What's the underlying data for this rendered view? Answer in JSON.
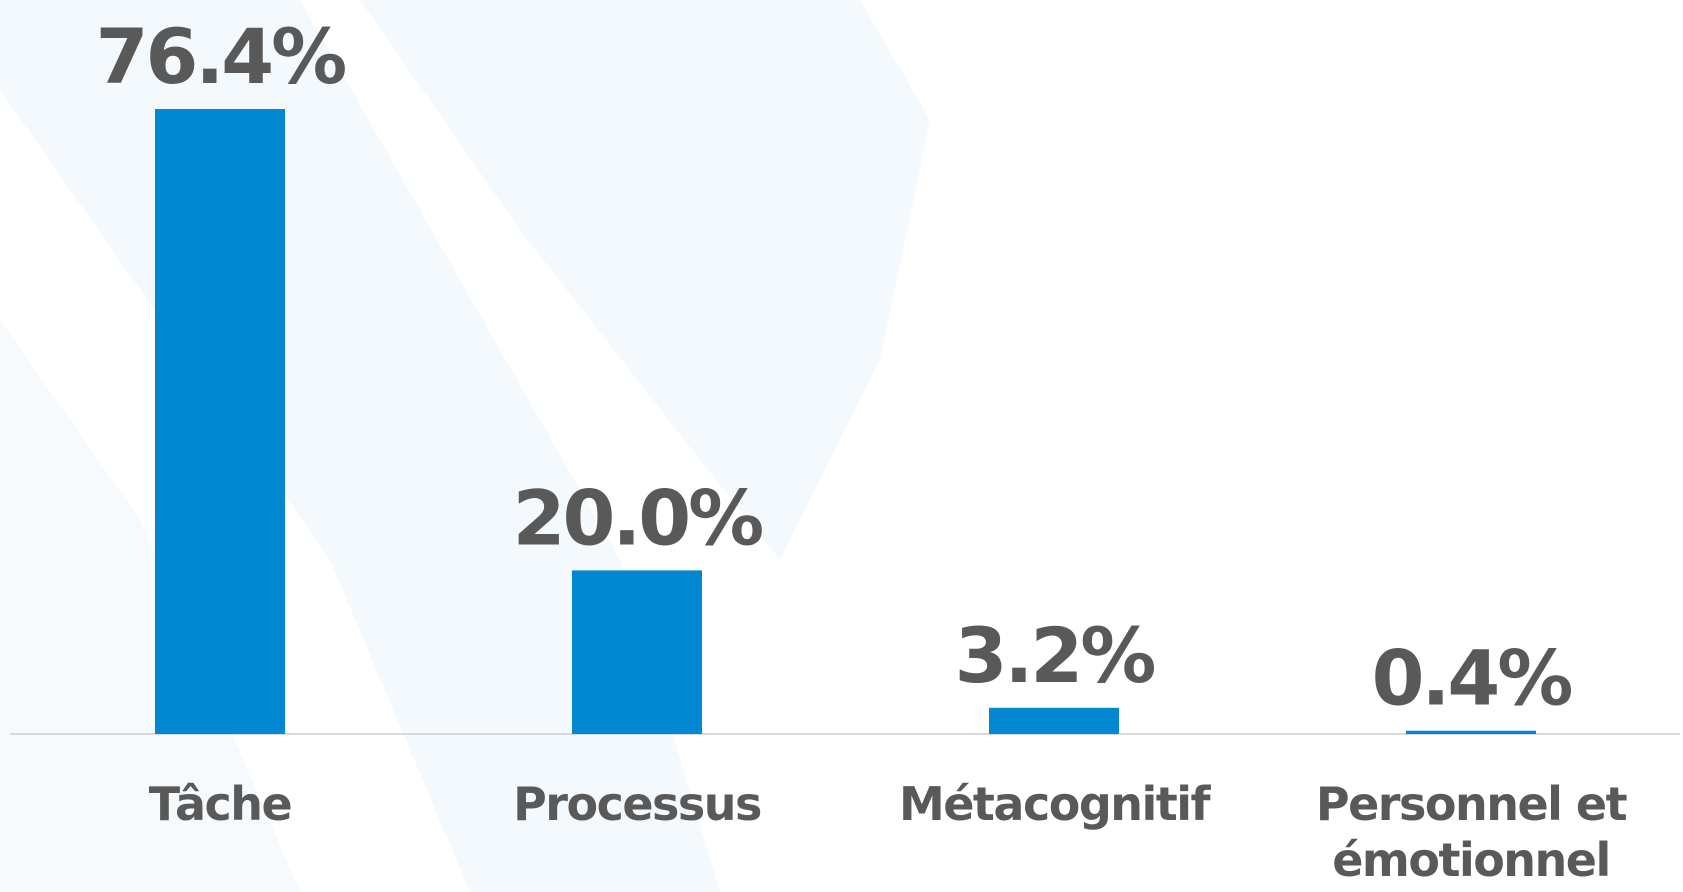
{
  "colors": {
    "bar": "#0288D1",
    "label": "#595959",
    "baseline": "#D9D9D9",
    "background_shape": "#F4F9FD"
  },
  "chart_data": {
    "type": "bar",
    "categories": [
      "Tâche",
      "Processus",
      "Métacognitif",
      "Personnel et émotionnel"
    ],
    "category_lines": [
      [
        "Tâche"
      ],
      [
        "Processus"
      ],
      [
        "Métacognitif"
      ],
      [
        "Personnel et",
        "émotionnel"
      ]
    ],
    "values": [
      76.4,
      20.0,
      3.2,
      0.4
    ],
    "value_labels": [
      "76.4%",
      "20.0%",
      "3.2%",
      "0.4%"
    ],
    "unit": "%",
    "ylim": [
      0,
      76.4
    ],
    "grid": false,
    "legend": "none",
    "title": "",
    "xlabel": "",
    "ylabel": ""
  }
}
